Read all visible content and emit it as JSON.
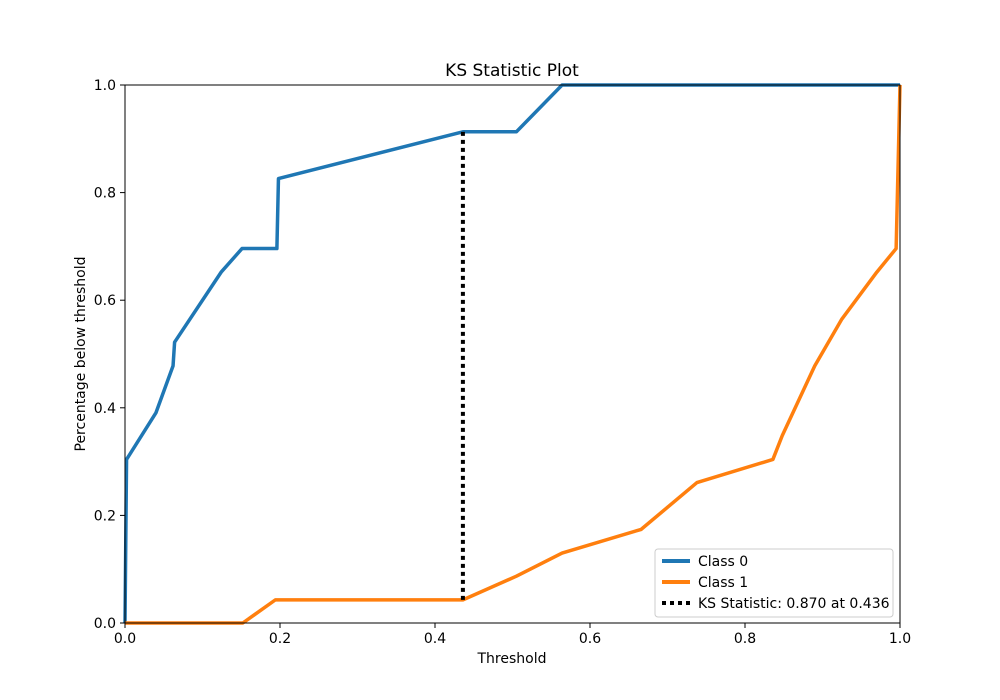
{
  "chart_data": {
    "type": "line",
    "title": "KS Statistic Plot",
    "xlabel": "Threshold",
    "ylabel": "Percentage below threshold",
    "xlim": [
      0,
      1
    ],
    "ylim": [
      0,
      1
    ],
    "xticks": [
      "0.0",
      "0.2",
      "0.4",
      "0.6",
      "0.8",
      "1.0"
    ],
    "yticks": [
      "0.0",
      "0.2",
      "0.4",
      "0.6",
      "0.8",
      "1.0"
    ],
    "grid": false,
    "legend_position": "lower-right",
    "series": [
      {
        "name": "Class 0",
        "color": "#1f77b4",
        "style": "solid",
        "points": [
          [
            0.0,
            0.0
          ],
          [
            0.002,
            0.304
          ],
          [
            0.04,
            0.391
          ],
          [
            0.062,
            0.478
          ],
          [
            0.064,
            0.522
          ],
          [
            0.124,
            0.652
          ],
          [
            0.151,
            0.696
          ],
          [
            0.196,
            0.696
          ],
          [
            0.198,
            0.826
          ],
          [
            0.436,
            0.913
          ],
          [
            0.505,
            0.913
          ],
          [
            0.564,
            1.0
          ],
          [
            1.0,
            1.0
          ]
        ]
      },
      {
        "name": "Class 1",
        "color": "#ff7f0e",
        "style": "solid",
        "points": [
          [
            0.0,
            0.0
          ],
          [
            0.152,
            0.0
          ],
          [
            0.194,
            0.043
          ],
          [
            0.436,
            0.043
          ],
          [
            0.505,
            0.087
          ],
          [
            0.564,
            0.13
          ],
          [
            0.666,
            0.174
          ],
          [
            0.738,
            0.261
          ],
          [
            0.836,
            0.304
          ],
          [
            0.848,
            0.348
          ],
          [
            0.89,
            0.478
          ],
          [
            0.925,
            0.565
          ],
          [
            0.97,
            0.652
          ],
          [
            0.995,
            0.696
          ],
          [
            1.0,
            1.0
          ]
        ]
      }
    ],
    "ks_statistic": {
      "label": "KS Statistic: 0.870 at 0.436",
      "value": 0.87,
      "threshold": 0.436,
      "y_low": 0.043,
      "y_high": 0.913,
      "color": "#000000",
      "style": "dotted"
    }
  }
}
